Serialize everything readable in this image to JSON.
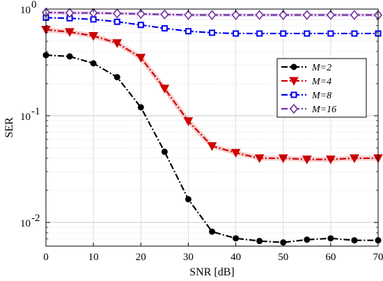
{
  "chart_data": {
    "type": "line",
    "title": "",
    "xlabel": "SNR [dB]",
    "ylabel": "SER",
    "x_scale": "linear",
    "y_scale": "log",
    "xlim": [
      0,
      70
    ],
    "ylim": [
      0.006,
      1
    ],
    "x_ticks": [
      0,
      10,
      20,
      30,
      40,
      50,
      60,
      70
    ],
    "x_tick_labels": [
      "0",
      "10",
      "20",
      "30",
      "40",
      "50",
      "60",
      "70"
    ],
    "y_major_ticks": [
      0.01,
      0.1,
      1
    ],
    "y_tick_labels": [
      {
        "base": "10",
        "exp": "-2"
      },
      {
        "base": "10",
        "exp": "-1"
      },
      {
        "base": "10",
        "exp": "0"
      }
    ],
    "grid": true,
    "legend_position": "top-right",
    "x": [
      0,
      5,
      10,
      15,
      20,
      25,
      30,
      35,
      40,
      45,
      50,
      55,
      60,
      65,
      70
    ],
    "series": [
      {
        "name": "M=2",
        "color": "#000000",
        "marker": "circle",
        "values": [
          0.37,
          0.36,
          0.31,
          0.23,
          0.12,
          0.046,
          0.0165,
          0.0082,
          0.0071,
          0.0067,
          0.0065,
          0.0069,
          0.0071,
          0.0068,
          0.0068
        ]
      },
      {
        "name": "M=4",
        "color": "#cc0000",
        "marker": "triangle-down",
        "values": [
          0.64,
          0.61,
          0.56,
          0.48,
          0.35,
          0.18,
          0.089,
          0.052,
          0.045,
          0.04,
          0.04,
          0.039,
          0.039,
          0.04,
          0.04
        ]
      },
      {
        "name": "M=8",
        "color": "#0000ee",
        "marker": "square",
        "values": [
          0.83,
          0.82,
          0.8,
          0.76,
          0.71,
          0.66,
          0.62,
          0.6,
          0.59,
          0.59,
          0.59,
          0.59,
          0.59,
          0.59,
          0.59
        ]
      },
      {
        "name": "M=16",
        "color": "#7030a0",
        "marker": "diamond",
        "values": [
          0.93,
          0.92,
          0.92,
          0.91,
          0.9,
          0.89,
          0.88,
          0.88,
          0.88,
          0.88,
          0.88,
          0.88,
          0.88,
          0.88,
          0.88
        ]
      }
    ]
  }
}
